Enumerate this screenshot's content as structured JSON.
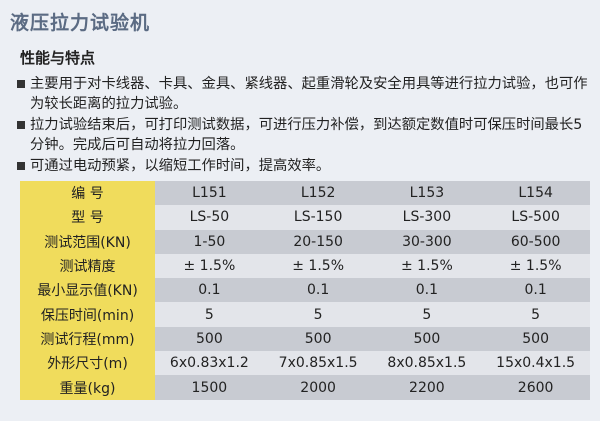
{
  "header": {
    "title": "液压拉力试验机"
  },
  "features": {
    "heading": "性能与特点",
    "items": [
      "主要用于对卡线器、卡具、金具、紧线器、起重滑轮及安全用具等进行拉力试验，也可作为较长距离的拉力试验。",
      "拉力试验结束后，可打印测试数据，可进行压力补偿，到达额定数值时可保压时间最长5分钟。完成后可自动将拉力回落。",
      "可通过电动预紧，以缩短工作时间，提高效率。"
    ]
  },
  "table": {
    "rows": [
      [
        "编 号",
        "L151",
        "L152",
        "L153",
        "L154"
      ],
      [
        "型 号",
        "LS-50",
        "LS-150",
        "LS-300",
        "LS-500"
      ],
      [
        "测试范围(KN)",
        "1-50",
        "20-150",
        "30-300",
        "60-500"
      ],
      [
        "测试精度",
        "± 1.5%",
        "± 1.5%",
        "± 1.5%",
        "± 1.5%"
      ],
      [
        "最小显示值(KN)",
        "0.1",
        "0.1",
        "0.1",
        "0.1"
      ],
      [
        "保压时间(min)",
        "5",
        "5",
        "5",
        "5"
      ],
      [
        "测试行程(mm)",
        "500",
        "500",
        "500",
        "500"
      ],
      [
        "外形尺寸(m)",
        "6x0.83x1.2",
        "7x0.85x1.5",
        "8x0.85x1.5",
        "15x0.4x1.5"
      ],
      [
        "重量(kg)",
        "1500",
        "2000",
        "2200",
        "2600"
      ]
    ]
  }
}
